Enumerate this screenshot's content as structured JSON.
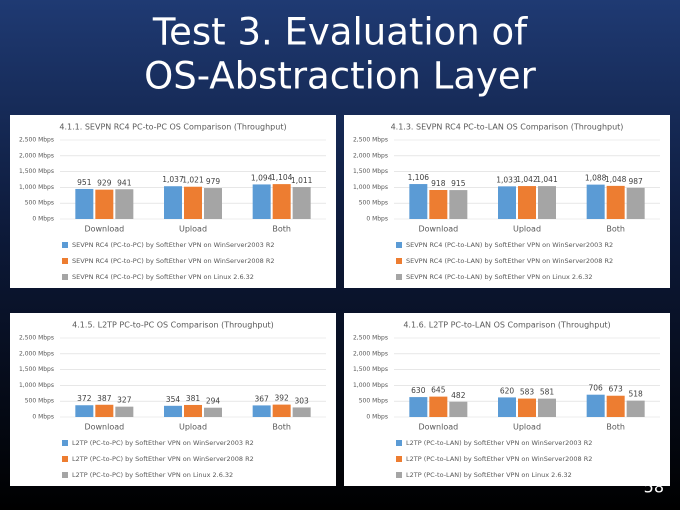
{
  "title": [
    "Test 3. Evaluation of",
    "OS-Abstraction Layer"
  ],
  "page_number": "58",
  "chart_data": [
    {
      "type": "bar",
      "title": "4.1.1. SEVPN RC4 PC-to-PC OS Comparison (Throughput)",
      "categories": [
        "Download",
        "Upload",
        "Both"
      ],
      "ylim": [
        0,
        2500
      ],
      "yticks": [
        {
          "value": 0,
          "label": "0 Mbps"
        },
        {
          "value": 500,
          "label": "500 Mbps"
        },
        {
          "value": 1000,
          "label": "1,000 Mbps"
        },
        {
          "value": 1500,
          "label": "1,500 Mbps"
        },
        {
          "value": 2000,
          "label": "2,000 Mbps"
        },
        {
          "value": 2500,
          "label": "2,500 Mbps"
        }
      ],
      "grid": true,
      "series": [
        {
          "name": "SEVPN RC4 (PC-to-PC) by SoftEther VPN on WinServer2003 R2",
          "color": "#5b9bd5",
          "values": [
            951,
            1037,
            1094
          ],
          "value_labels": [
            "951",
            "1,037",
            "1,094"
          ]
        },
        {
          "name": "SEVPN RC4 (PC-to-PC) by SoftEther VPN on WinServer2008 R2",
          "color": "#ed7d31",
          "values": [
            929,
            1021,
            1104
          ],
          "value_labels": [
            "929",
            "1,021",
            "1,104"
          ]
        },
        {
          "name": "SEVPN RC4 (PC-to-PC) by SoftEther VPN on Linux 2.6.32",
          "color": "#a5a5a5",
          "values": [
            941,
            979,
            1011
          ],
          "value_labels": [
            "941",
            "979",
            "1,011"
          ]
        }
      ]
    },
    {
      "type": "bar",
      "title": "4.1.3. SEVPN RC4 PC-to-LAN OS Comparison (Throughput)",
      "categories": [
        "Download",
        "Upload",
        "Both"
      ],
      "ylim": [
        0,
        2500
      ],
      "yticks": [
        {
          "value": 0,
          "label": "0 Mbps"
        },
        {
          "value": 500,
          "label": "500 Mbps"
        },
        {
          "value": 1000,
          "label": "1,000 Mbps"
        },
        {
          "value": 1500,
          "label": "1,500 Mbps"
        },
        {
          "value": 2000,
          "label": "2,000 Mbps"
        },
        {
          "value": 2500,
          "label": "2,500 Mbps"
        }
      ],
      "grid": true,
      "series": [
        {
          "name": "SEVPN RC4 (PC-to-LAN) by SoftEther VPN on WinServer2003 R2",
          "color": "#5b9bd5",
          "values": [
            1106,
            1033,
            1088
          ],
          "value_labels": [
            "1,106",
            "1,033",
            "1,088"
          ]
        },
        {
          "name": "SEVPN RC4 (PC-to-LAN) by SoftEther VPN on WinServer2008 R2",
          "color": "#ed7d31",
          "values": [
            918,
            1042,
            1048
          ],
          "value_labels": [
            "918",
            "1,042",
            "1,048"
          ]
        },
        {
          "name": "SEVPN RC4 (PC-to-LAN) by SoftEther VPN on Linux 2.6.32",
          "color": "#a5a5a5",
          "values": [
            915,
            1041,
            987
          ],
          "value_labels": [
            "915",
            "1,041",
            "987"
          ]
        }
      ]
    },
    {
      "type": "bar",
      "title": "4.1.5. L2TP PC-to-PC OS Comparison (Throughput)",
      "categories": [
        "Download",
        "Upload",
        "Both"
      ],
      "ylim": [
        0,
        2500
      ],
      "yticks": [
        {
          "value": 0,
          "label": "0 Mbps"
        },
        {
          "value": 500,
          "label": "500 Mbps"
        },
        {
          "value": 1000,
          "label": "1,000 Mbps"
        },
        {
          "value": 1500,
          "label": "1,500 Mbps"
        },
        {
          "value": 2000,
          "label": "2,000 Mbps"
        },
        {
          "value": 2500,
          "label": "2,500 Mbps"
        }
      ],
      "grid": true,
      "series": [
        {
          "name": "L2TP (PC-to-PC) by SoftEther VPN on WinServer2003 R2",
          "color": "#5b9bd5",
          "values": [
            372,
            354,
            367
          ]
        },
        {
          "name": "L2TP (PC-to-PC) by SoftEther VPN on WinServer2008 R2",
          "color": "#ed7d31",
          "values": [
            387,
            381,
            392
          ]
        },
        {
          "name": "L2TP (PC-to-PC) by SoftEther VPN on Linux 2.6.32",
          "color": "#a5a5a5",
          "values": [
            327,
            294,
            303
          ]
        }
      ]
    },
    {
      "type": "bar",
      "title": "4.1.6. L2TP PC-to-LAN OS Comparison (Throughput)",
      "categories": [
        "Download",
        "Upload",
        "Both"
      ],
      "ylim": [
        0,
        2500
      ],
      "yticks": [
        {
          "value": 0,
          "label": "0 Mbps"
        },
        {
          "value": 500,
          "label": "500 Mbps"
        },
        {
          "value": 1000,
          "label": "1,000 Mbps"
        },
        {
          "value": 1500,
          "label": "1,500 Mbps"
        },
        {
          "value": 2000,
          "label": "2,000 Mbps"
        },
        {
          "value": 2500,
          "label": "2,500 Mbps"
        }
      ],
      "grid": true,
      "series": [
        {
          "name": "L2TP (PC-to-LAN) by SoftEther VPN on WinServer2003 R2",
          "color": "#5b9bd5",
          "values": [
            630,
            620,
            706
          ]
        },
        {
          "name": "L2TP (PC-to-LAN) by SoftEther VPN on WinServer2008 R2",
          "color": "#ed7d31",
          "values": [
            645,
            583,
            673
          ]
        },
        {
          "name": "L2TP (PC-to-LAN) by SoftEther VPN on Linux 2.6.32",
          "color": "#a5a5a5",
          "values": [
            482,
            581,
            518
          ]
        }
      ]
    }
  ]
}
